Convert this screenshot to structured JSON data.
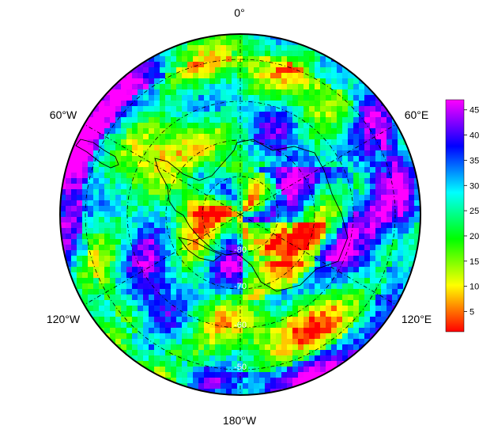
{
  "map": {
    "projection": "south-polar-stereographic",
    "longitude_labels": [
      {
        "id": "lon-0",
        "text": "0°"
      },
      {
        "id": "lon-60e",
        "text": "60°E"
      },
      {
        "id": "lon-60w",
        "text": "60°W"
      },
      {
        "id": "lon-120e",
        "text": "120°E"
      },
      {
        "id": "lon-120w",
        "text": "120°W"
      },
      {
        "id": "lon-180",
        "text": "180°W"
      }
    ],
    "latitude_labels": [
      "-80",
      "-70",
      "-60",
      "-50"
    ]
  },
  "colorbar": {
    "min": 1,
    "max": 47,
    "ticks": [
      "5",
      "10",
      "15",
      "20",
      "25",
      "30",
      "35",
      "40",
      "45"
    ],
    "tick_values": [
      5,
      10,
      15,
      20,
      25,
      30,
      35,
      40,
      45
    ],
    "colormap": [
      "#ff0000",
      "#ffff00",
      "#00ff00",
      "#00ffff",
      "#0000ff",
      "#ff00ff"
    ]
  },
  "colors": {
    "continent_outline": "#000000",
    "graticule": "#000000",
    "rim": "#000000",
    "background": "#ffffff"
  }
}
